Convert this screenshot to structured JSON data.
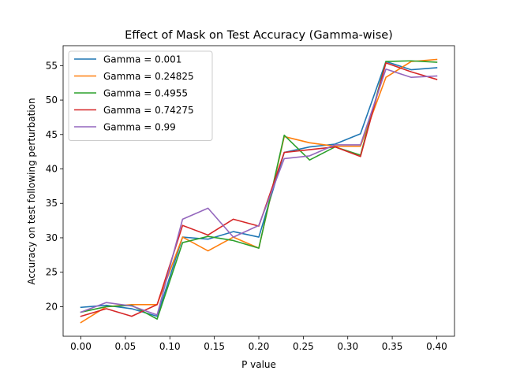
{
  "chart_data": {
    "type": "line",
    "title": "Effect of Mask on Test Accuracy (Gamma-wise)",
    "xlabel": "P value",
    "ylabel": "Accuracy on test following perturbation",
    "xlim": [
      -0.02,
      0.42
    ],
    "ylim": [
      15.7,
      57.9
    ],
    "xticks": [
      0.0,
      0.05,
      0.1,
      0.15,
      0.2,
      0.25,
      0.3,
      0.35,
      0.4
    ],
    "xtick_labels": [
      "0.00",
      "0.05",
      "0.10",
      "0.15",
      "0.20",
      "0.25",
      "0.30",
      "0.35",
      "0.40"
    ],
    "yticks": [
      20,
      25,
      30,
      35,
      40,
      45,
      50,
      55
    ],
    "ytick_labels": [
      "20",
      "25",
      "30",
      "35",
      "40",
      "45",
      "50",
      "55"
    ],
    "grid": false,
    "legend_position": "upper-left",
    "x": [
      0.0,
      0.0286,
      0.0571,
      0.0857,
      0.1143,
      0.1429,
      0.1714,
      0.2,
      0.2286,
      0.2571,
      0.2857,
      0.3143,
      0.3429,
      0.3714,
      0.4
    ],
    "series": [
      {
        "name": "Gamma = 0.001",
        "color": "#1f77b4",
        "values": [
          19.9,
          20.2,
          19.7,
          18.6,
          30.1,
          29.8,
          30.9,
          30.1,
          42.4,
          43.2,
          43.6,
          45.1,
          55.6,
          54.4,
          54.7
        ]
      },
      {
        "name": "Gamma = 0.24825",
        "color": "#ff7f0e",
        "values": [
          17.7,
          20.0,
          20.3,
          20.3,
          30.1,
          28.1,
          30.1,
          28.5,
          44.7,
          43.8,
          43.3,
          43.3,
          53.3,
          55.6,
          55.9
        ]
      },
      {
        "name": "Gamma = 0.4955",
        "color": "#2ca02c",
        "values": [
          19.2,
          20.0,
          20.2,
          18.2,
          29.3,
          30.2,
          29.6,
          28.5,
          44.9,
          41.3,
          43.2,
          42.0,
          55.6,
          55.7,
          55.5
        ]
      },
      {
        "name": "Gamma = 0.74275",
        "color": "#d62728",
        "values": [
          18.6,
          19.7,
          18.6,
          20.3,
          31.8,
          30.4,
          32.7,
          31.7,
          42.4,
          42.8,
          43.2,
          41.8,
          55.4,
          54.1,
          53.0
        ]
      },
      {
        "name": "Gamma = 0.99",
        "color": "#9467bd",
        "values": [
          19.2,
          20.6,
          20.1,
          18.8,
          32.7,
          34.3,
          30.1,
          31.8,
          41.5,
          41.9,
          43.5,
          43.5,
          54.5,
          53.3,
          53.5
        ]
      }
    ]
  }
}
